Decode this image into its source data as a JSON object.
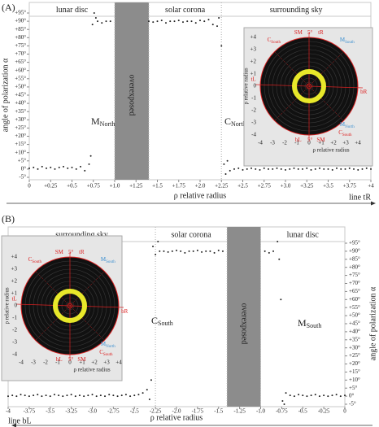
{
  "chart_data": [
    {
      "type": "scatter",
      "panel_label": "(A)",
      "xlabel": "ρ relative radius",
      "ylabel": "angle of polarization α",
      "line_label": "line tR",
      "yaxis_side": "left",
      "color": "#222",
      "xlim": [
        0,
        4
      ],
      "ylim": [
        -5,
        95
      ],
      "xticks": [
        0,
        {
          "value": 0.25,
          "label": "+0.25"
        },
        {
          "value": 0.5,
          "label": "+0.5"
        },
        {
          "value": 0.75,
          "label": "+0.75"
        },
        {
          "value": 1,
          "label": "+1.0"
        },
        {
          "value": 1.25,
          "label": "+1.25"
        },
        {
          "value": 1.5,
          "label": "+1.5"
        },
        {
          "value": 1.75,
          "label": "+1.75"
        },
        {
          "value": 2,
          "label": "+2.0"
        },
        {
          "value": 2.25,
          "label": "+2.25"
        },
        {
          "value": 2.5,
          "label": "+2.5"
        },
        {
          "value": 2.75,
          "label": "+2.75"
        },
        {
          "value": 3,
          "label": "+3.0"
        },
        {
          "value": 3.25,
          "label": "+3.25"
        },
        {
          "value": 3.5,
          "label": "+3.5"
        },
        {
          "value": 3.75,
          "label": "+3.75"
        },
        {
          "value": 4,
          "label": "+4"
        }
      ],
      "yticks": [
        {
          "value": -5,
          "label": "-5°"
        },
        {
          "value": 0,
          "label": "0°"
        },
        {
          "value": 5,
          "label": "+5°"
        },
        {
          "value": 10,
          "label": "+10°"
        },
        {
          "value": 15,
          "label": "+15°"
        },
        {
          "value": 20,
          "label": "+20°"
        },
        {
          "value": 25,
          "label": "+25°"
        },
        {
          "value": 30,
          "label": "+30°"
        },
        {
          "value": 35,
          "label": "+35°"
        },
        {
          "value": 40,
          "label": "+40°"
        },
        {
          "value": 45,
          "label": "+45°"
        },
        {
          "value": 50,
          "label": "+50°"
        },
        {
          "value": 55,
          "label": "+55°"
        },
        {
          "value": 60,
          "label": "+60°"
        },
        {
          "value": 65,
          "label": "+65°"
        },
        {
          "value": 70,
          "label": "+70°"
        },
        {
          "value": 75,
          "label": "+75°"
        },
        {
          "value": 80,
          "label": "+80°"
        },
        {
          "value": 85,
          "label": "+85°"
        },
        {
          "value": 90,
          "label": "+90°"
        },
        {
          "value": 95,
          "label": "+95°"
        }
      ],
      "regions": [
        {
          "name": "lunar disc",
          "range": [
            0,
            1
          ]
        },
        {
          "name": "solar corona",
          "range": [
            1.4,
            2.25
          ]
        },
        {
          "name": "surrounding sky",
          "range": [
            2.25,
            4
          ]
        }
      ],
      "overexposed": {
        "label": "overexposed",
        "range": [
          1,
          1.4
        ]
      },
      "annotations": [
        {
          "text": "M",
          "sub": "North"
        },
        {
          "text": "C",
          "sub": "North"
        }
      ],
      "x": [
        0,
        0.05,
        0.1,
        0.15,
        0.2,
        0.25,
        0.3,
        0.35,
        0.4,
        0.45,
        0.5,
        0.55,
        0.6,
        0.65,
        0.7,
        0.72,
        0.74,
        0.76,
        0.78,
        0.8,
        0.85,
        0.9,
        0.95,
        1.4,
        1.45,
        1.5,
        1.55,
        1.6,
        1.65,
        1.7,
        1.75,
        1.8,
        1.85,
        1.9,
        1.95,
        2,
        2.05,
        2.1,
        2.15,
        2.2,
        2.22,
        2.25,
        2.28,
        2.3,
        2.32,
        2.35,
        2.4,
        2.45,
        2.5,
        2.55,
        2.6,
        2.65,
        2.7,
        2.75,
        2.8,
        2.85,
        2.9,
        2.95,
        3,
        3.05,
        3.1,
        3.15,
        3.2,
        3.25,
        3.3,
        3.35,
        3.4,
        3.45,
        3.5,
        3.55,
        3.6,
        3.65,
        3.7,
        3.75,
        3.8,
        3.85,
        3.9,
        3.95,
        4
      ],
      "values": [
        0.5,
        1,
        0,
        1.5,
        0.5,
        1,
        0,
        1,
        1.5,
        0.5,
        1,
        0,
        1.5,
        -1,
        3,
        8,
        88,
        95,
        92,
        90,
        89,
        90,
        90,
        90,
        89.5,
        90,
        90.5,
        89,
        90,
        90,
        90.5,
        89.5,
        90,
        90,
        89,
        90.5,
        90,
        91,
        88,
        87,
        92,
        75,
        3,
        -3,
        5,
        -1,
        0,
        0.5,
        -0.5,
        0,
        0.5,
        0,
        -0.5,
        0.5,
        0,
        0,
        0.5,
        0,
        -0.5,
        0,
        0.5,
        0,
        0,
        0.5,
        -0.5,
        0,
        0.5,
        0,
        0,
        -0.5,
        0.5,
        0,
        0,
        0.5,
        0,
        -0.5,
        0,
        0.5,
        0
      ],
      "inset": {
        "xlim": [
          -4,
          4
        ],
        "ylim": [
          -4,
          4
        ],
        "xlabel": "ρ relative radius",
        "ylabel": "ρ relative radius",
        "xticks": [
          -4,
          -3,
          -2,
          -1,
          0,
          {
            "value": 1,
            "label": "+1"
          },
          {
            "value": 2,
            "label": "+2"
          },
          {
            "value": 3,
            "label": "+3"
          },
          {
            "value": 4,
            "label": "+4"
          }
        ],
        "yticks": [
          -4,
          -3,
          -2,
          -1,
          0,
          {
            "value": 1,
            "label": "+1"
          },
          {
            "value": 2,
            "label": "+2"
          },
          {
            "value": 3,
            "label": "+3"
          },
          {
            "value": 4,
            "label": "+4"
          }
        ],
        "labels": [
          {
            "text": "SM",
            "color": "#d22"
          },
          {
            "text": "5°",
            "color": "#d22"
          },
          {
            "text": "tR",
            "color": "#d22"
          },
          {
            "text": "C",
            "sub": "South",
            "color": "#d22"
          },
          {
            "text": "M",
            "sub": "South",
            "color": "#3a8fd0"
          },
          {
            "text": "tL",
            "color": "#d22"
          },
          {
            "text": "bR",
            "color": "#d22"
          },
          {
            "text": "M",
            "sub": "North",
            "color": "#3a8fd0"
          },
          {
            "text": "C",
            "sub": "South",
            "color": "#d22"
          },
          {
            "text": "bL",
            "color": "#d22"
          },
          {
            "text": "5°",
            "color": "#d22"
          },
          {
            "text": "SM",
            "color": "#d22"
          }
        ]
      }
    },
    {
      "type": "scatter",
      "panel_label": "(B)",
      "xlabel": "ρ relative radius",
      "ylabel": "angle of polarization α",
      "line_label": "line bL",
      "yaxis_side": "right",
      "color": "#222",
      "xlim": [
        -4,
        0
      ],
      "ylim": [
        -5,
        95
      ],
      "xticks": [
        -4,
        -3.75,
        -3.5,
        -3.25,
        {
          "value": -3,
          "label": "-3.0"
        },
        -2.75,
        -2.5,
        -2.25,
        {
          "value": -2,
          "label": "-2.0"
        },
        -1.75,
        -1.5,
        -1.25,
        {
          "value": -1,
          "label": "-1.0"
        },
        -0.75,
        -0.5,
        -0.25,
        0
      ],
      "yticks": [
        {
          "value": -5,
          "label": "-5°"
        },
        {
          "value": 0,
          "label": "0°"
        },
        {
          "value": 5,
          "label": "+5°"
        },
        {
          "value": 10,
          "label": "+10°"
        },
        {
          "value": 15,
          "label": "+15°"
        },
        {
          "value": 20,
          "label": "+20°"
        },
        {
          "value": 25,
          "label": "+25°"
        },
        {
          "value": 30,
          "label": "+30°"
        },
        {
          "value": 35,
          "label": "+35°"
        },
        {
          "value": 40,
          "label": "+40°"
        },
        {
          "value": 45,
          "label": "+45°"
        },
        {
          "value": 50,
          "label": "+50°"
        },
        {
          "value": 55,
          "label": "+55°"
        },
        {
          "value": 60,
          "label": "+60°"
        },
        {
          "value": 65,
          "label": "+65°"
        },
        {
          "value": 70,
          "label": "+70°"
        },
        {
          "value": 75,
          "label": "+75°"
        },
        {
          "value": 80,
          "label": "+80°"
        },
        {
          "value": 85,
          "label": "+85°"
        },
        {
          "value": 90,
          "label": "+90°"
        },
        {
          "value": 95,
          "label": "+95°"
        }
      ],
      "regions": [
        {
          "name": "surrounding sky",
          "range": [
            -4,
            -2.25
          ]
        },
        {
          "name": "solar corona",
          "range": [
            -2.25,
            -1.4
          ]
        },
        {
          "name": "lunar disc",
          "range": [
            -1,
            0
          ]
        }
      ],
      "overexposed": {
        "label": "overexposed",
        "range": [
          -1.4,
          -1
        ]
      },
      "annotations": [
        {
          "text": "C",
          "sub": "South"
        },
        {
          "text": "M",
          "sub": "South"
        }
      ],
      "x": [
        -4,
        -3.95,
        -3.9,
        -3.85,
        -3.8,
        -3.75,
        -3.7,
        -3.65,
        -3.6,
        -3.55,
        -3.5,
        -3.45,
        -3.4,
        -3.35,
        -3.3,
        -3.25,
        -3.2,
        -3.15,
        -3.1,
        -3.05,
        -3,
        -2.95,
        -2.9,
        -2.85,
        -2.8,
        -2.75,
        -2.7,
        -2.65,
        -2.6,
        -2.55,
        -2.5,
        -2.45,
        -2.4,
        -2.35,
        -2.32,
        -2.3,
        -2.28,
        -2.25,
        -2.22,
        -2.2,
        -2.15,
        -2.1,
        -2.05,
        -2,
        -1.95,
        -1.9,
        -1.85,
        -1.8,
        -1.75,
        -1.7,
        -1.65,
        -1.6,
        -1.55,
        -1.5,
        -1.45,
        -0.95,
        -0.9,
        -0.85,
        -0.8,
        -0.78,
        -0.76,
        -0.74,
        -0.72,
        -0.7,
        -0.65,
        -0.6,
        -0.55,
        -0.5,
        -0.45,
        -0.4,
        -0.35,
        -0.3,
        -0.25,
        -0.2,
        -0.15,
        -0.1,
        -0.05,
        0
      ],
      "values": [
        0,
        0.5,
        0,
        1,
        0.5,
        0,
        0.5,
        1,
        0,
        0.5,
        0,
        1,
        0.5,
        0,
        0.5,
        1,
        0,
        0.5,
        0,
        0.5,
        1,
        0,
        0.5,
        0,
        1,
        0.5,
        0,
        0.5,
        1,
        0,
        0.5,
        1,
        2,
        4,
        -2,
        10,
        93,
        88,
        96,
        90,
        90,
        89.5,
        90,
        90.5,
        90,
        89,
        90,
        90,
        90.5,
        89.5,
        90,
        90,
        89,
        90.5,
        90,
        90,
        89,
        90,
        96,
        85,
        60,
        -3,
        -5,
        2,
        0.5,
        0,
        1,
        0.5,
        0,
        0.5,
        1,
        0,
        0.5,
        0,
        0.5,
        1,
        0,
        0.5
      ],
      "inset": {
        "xlim": [
          -4,
          4
        ],
        "ylim": [
          -4,
          4
        ],
        "xlabel": "ρ relative radius",
        "ylabel": "ρ relative radius",
        "xticks": [
          -4,
          -3,
          -2,
          -1,
          0,
          {
            "value": 1,
            "label": "+1"
          },
          {
            "value": 2,
            "label": "+2"
          },
          {
            "value": 3,
            "label": "+3"
          },
          {
            "value": 4,
            "label": "+4"
          }
        ],
        "yticks": [
          -4,
          -3,
          -2,
          -1,
          0,
          {
            "value": 1,
            "label": "+1"
          },
          {
            "value": 2,
            "label": "+2"
          },
          {
            "value": 3,
            "label": "+3"
          },
          {
            "value": 4,
            "label": "+4"
          }
        ],
        "labels": [
          {
            "text": "SM",
            "color": "#d22"
          },
          {
            "text": "5°",
            "color": "#d22"
          },
          {
            "text": "tR",
            "color": "#d22"
          },
          {
            "text": "C",
            "sub": "South",
            "color": "#d22"
          },
          {
            "text": "M",
            "sub": "South",
            "color": "#3a8fd0"
          },
          {
            "text": "tL",
            "color": "#d22"
          },
          {
            "text": "bR",
            "color": "#d22"
          },
          {
            "text": "M",
            "sub": "North",
            "color": "#3a8fd0"
          },
          {
            "text": "C",
            "sub": "South",
            "color": "#d22"
          },
          {
            "text": "bL",
            "color": "#d22"
          },
          {
            "text": "5°",
            "color": "#d22"
          },
          {
            "text": "SM",
            "color": "#d22"
          }
        ]
      }
    }
  ]
}
